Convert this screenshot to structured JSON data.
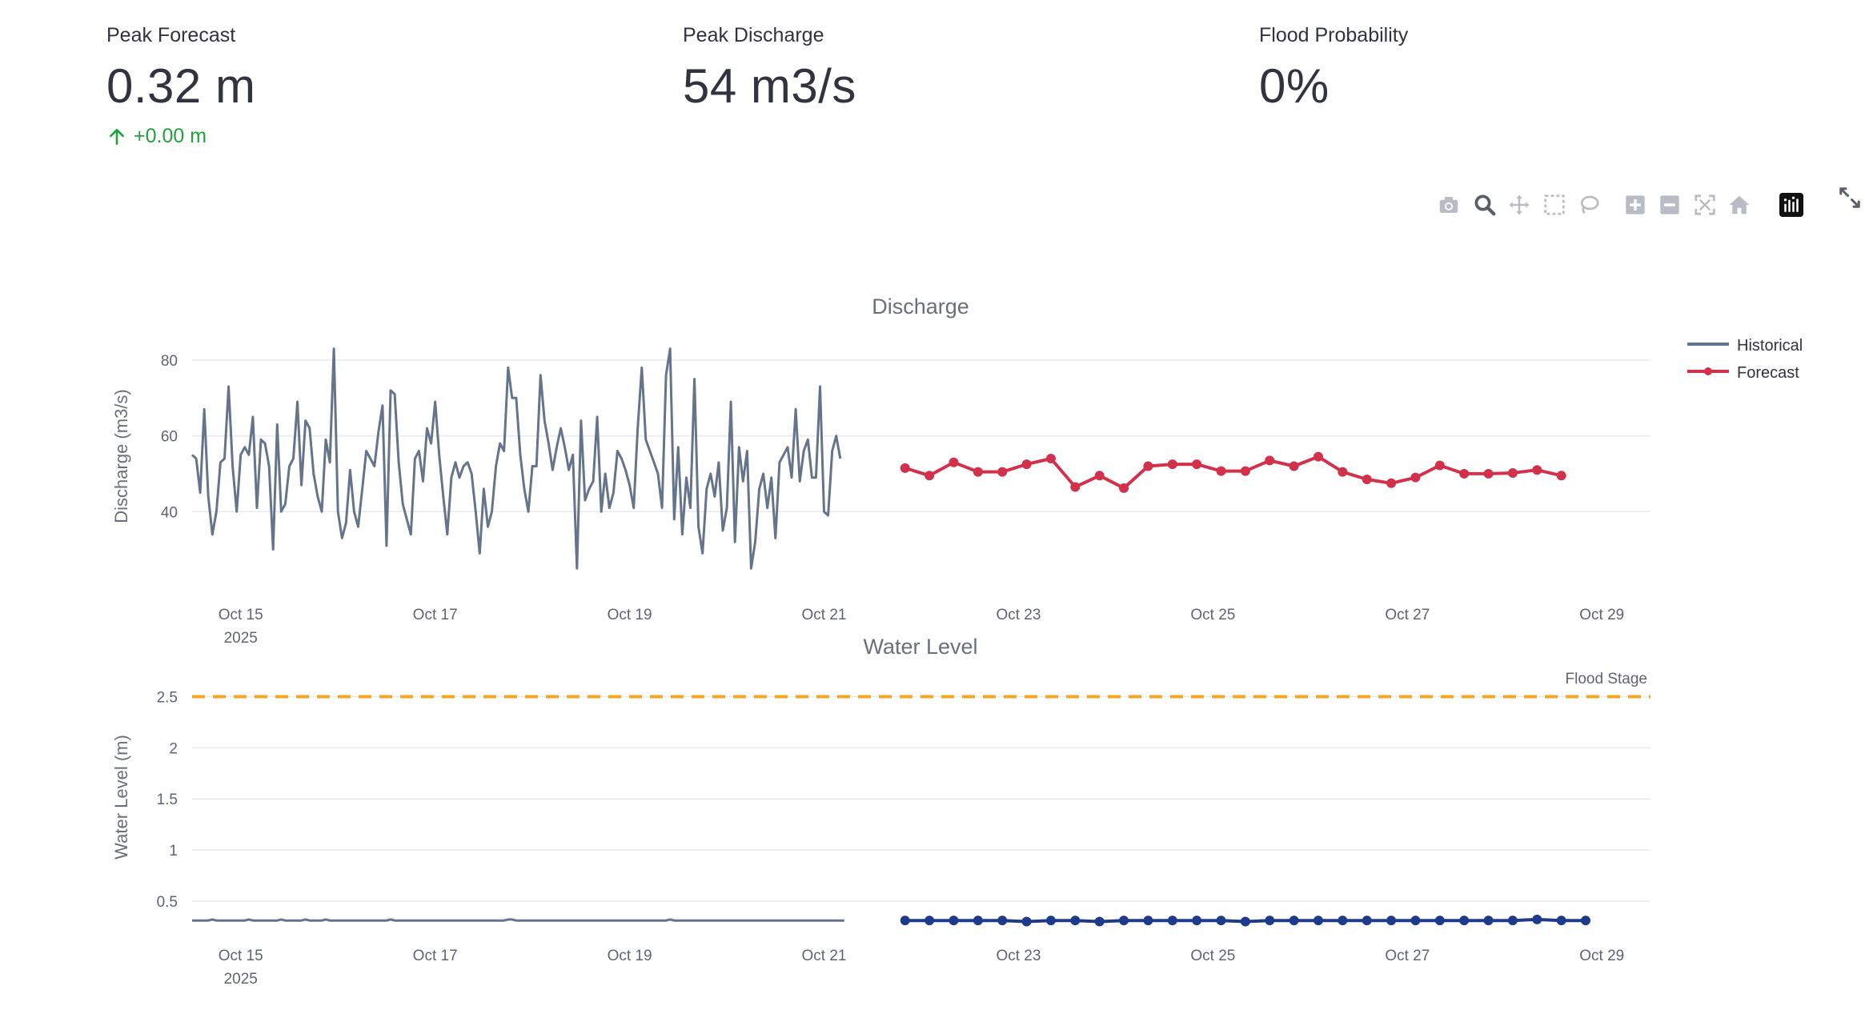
{
  "metrics": [
    {
      "label": "Peak Forecast",
      "value": "0.32 m",
      "delta": "+0.00 m"
    },
    {
      "label": "Peak Discharge",
      "value": "54 m3/s",
      "delta": ""
    },
    {
      "label": "Flood Probability",
      "value": "0%",
      "delta": ""
    }
  ],
  "toolbar": [
    "camera-icon",
    "zoom-icon",
    "pan-icon",
    "box-select-icon",
    "lasso-select-icon",
    "zoom-in-icon",
    "zoom-out-icon",
    "autoscale-icon",
    "reset-axes-icon",
    "plotly-logo-icon",
    "fullscreen-icon"
  ],
  "colors": {
    "historical": "#64748b",
    "discharge_forecast": "#d1314b",
    "level_forecast": "#1e3a8a",
    "flood_stage": "#f5a623",
    "grid": "#e8e9ee",
    "axis_text": "#5f6472",
    "delta_up": "#21a13a"
  },
  "chart_data": [
    {
      "type": "line",
      "title": "Discharge",
      "xlabel": "",
      "ylabel": "Discharge (m3/s)",
      "ylim": [
        20,
        88
      ],
      "yticks": [
        40,
        60,
        80
      ],
      "xlim": [
        "2025-10-14 12:00",
        "2025-10-29 12:00"
      ],
      "xticks": [
        {
          "date": "2025-10-15",
          "label": "Oct 15",
          "sublabel": "2025"
        },
        {
          "date": "2025-10-17",
          "label": "Oct 17",
          "sublabel": ""
        },
        {
          "date": "2025-10-19",
          "label": "Oct 19",
          "sublabel": ""
        },
        {
          "date": "2025-10-21",
          "label": "Oct 21",
          "sublabel": ""
        },
        {
          "date": "2025-10-23",
          "label": "Oct 23",
          "sublabel": ""
        },
        {
          "date": "2025-10-25",
          "label": "Oct 25",
          "sublabel": ""
        },
        {
          "date": "2025-10-27",
          "label": "Oct 27",
          "sublabel": ""
        },
        {
          "date": "2025-10-29",
          "label": "Oct 29",
          "sublabel": ""
        }
      ],
      "grid": true,
      "legend_position": "top-right",
      "series": [
        {
          "name": "Historical",
          "mode": "lines",
          "x_start": "2025-10-14 12:00",
          "x_step_hours": 1.0,
          "values": [
            55,
            54,
            45,
            67,
            44,
            34,
            40,
            53,
            54,
            73,
            52,
            40,
            55,
            57,
            55,
            65,
            41,
            59,
            58,
            52,
            30,
            63,
            40,
            42,
            52,
            54,
            69,
            47,
            64,
            62,
            50,
            44,
            40,
            59,
            53,
            83,
            40,
            33,
            37,
            51,
            40,
            36,
            46,
            56,
            54,
            52,
            61,
            68,
            31,
            72,
            71,
            53,
            42,
            38,
            34,
            54,
            56,
            48,
            62,
            58,
            69,
            55,
            44,
            34,
            49,
            53,
            49,
            52,
            53,
            50,
            40,
            29,
            46,
            36,
            40,
            52,
            58,
            56,
            78,
            70,
            70,
            55,
            46,
            40,
            52,
            52,
            76,
            64,
            58,
            51,
            57,
            62,
            57,
            51,
            55,
            25,
            64,
            43,
            46,
            48,
            65,
            40,
            50,
            41,
            45,
            56,
            54,
            51,
            47,
            41,
            62,
            78,
            59,
            56,
            53,
            50,
            41,
            76,
            83,
            38,
            57,
            34,
            49,
            41,
            75,
            36,
            29,
            46,
            50,
            44,
            53,
            35,
            41,
            69,
            32,
            57,
            48,
            56,
            25,
            32,
            46,
            50,
            41,
            49,
            33,
            53,
            55,
            57,
            49,
            67,
            48,
            56,
            59,
            49,
            49,
            73,
            40,
            39,
            56,
            60,
            54
          ]
        },
        {
          "name": "Forecast",
          "mode": "lines+markers",
          "x_start": "2025-10-21 20:00",
          "x_step_hours": 6.0,
          "values": [
            51.5,
            49.5,
            53,
            50.5,
            50.5,
            52.5,
            54,
            46.5,
            49.5,
            46.2,
            52,
            52.5,
            52.5,
            50.7,
            50.7,
            53.5,
            52,
            54.5,
            50.5,
            48.5,
            47.5,
            49,
            52.2,
            50,
            50,
            50.2,
            51,
            49.5
          ]
        }
      ]
    },
    {
      "type": "line",
      "title": "Water Level",
      "xlabel": "",
      "ylabel": "Water Level (m)",
      "ylim": [
        0.1,
        2.7
      ],
      "yticks": [
        0.5,
        1,
        1.5,
        2,
        2.5
      ],
      "ytick_labels": [
        "0.5",
        "1",
        "1.5",
        "2",
        "2.5"
      ],
      "xlim": [
        "2025-10-14 12:00",
        "2025-10-29 12:00"
      ],
      "grid": true,
      "annotation": {
        "label": "Flood Stage",
        "y": 2.5
      },
      "series": [
        {
          "name": "Historical",
          "mode": "lines",
          "x_start": "2025-10-14 12:00",
          "x_step_hours": 1.0,
          "values": [
            0.31,
            0.31,
            0.31,
            0.31,
            0.31,
            0.32,
            0.31,
            0.31,
            0.31,
            0.31,
            0.31,
            0.31,
            0.31,
            0.31,
            0.32,
            0.31,
            0.31,
            0.31,
            0.31,
            0.31,
            0.31,
            0.31,
            0.32,
            0.31,
            0.31,
            0.31,
            0.31,
            0.31,
            0.32,
            0.31,
            0.31,
            0.31,
            0.31,
            0.32,
            0.31,
            0.31,
            0.31,
            0.31,
            0.31,
            0.31,
            0.31,
            0.31,
            0.31,
            0.31,
            0.31,
            0.31,
            0.31,
            0.31,
            0.31,
            0.32,
            0.31,
            0.31,
            0.31,
            0.31,
            0.31,
            0.31,
            0.31,
            0.31,
            0.31,
            0.31,
            0.31,
            0.31,
            0.31,
            0.31,
            0.31,
            0.31,
            0.31,
            0.31,
            0.31,
            0.31,
            0.31,
            0.31,
            0.31,
            0.31,
            0.31,
            0.31,
            0.31,
            0.31,
            0.32,
            0.32,
            0.31,
            0.31,
            0.31,
            0.31,
            0.31,
            0.31,
            0.31,
            0.31,
            0.31,
            0.31,
            0.31,
            0.31,
            0.31,
            0.31,
            0.31,
            0.31,
            0.31,
            0.31,
            0.31,
            0.31,
            0.31,
            0.31,
            0.31,
            0.31,
            0.31,
            0.31,
            0.31,
            0.31,
            0.31,
            0.31,
            0.31,
            0.31,
            0.31,
            0.31,
            0.31,
            0.31,
            0.31,
            0.31,
            0.32,
            0.31,
            0.31,
            0.31,
            0.31,
            0.31,
            0.31,
            0.31,
            0.31,
            0.31,
            0.31,
            0.31,
            0.31,
            0.31,
            0.31,
            0.31,
            0.31,
            0.31,
            0.31,
            0.31,
            0.31,
            0.31,
            0.31,
            0.31,
            0.31,
            0.31,
            0.31,
            0.31,
            0.31,
            0.31,
            0.31,
            0.31,
            0.31,
            0.31,
            0.31,
            0.31,
            0.31,
            0.31,
            0.31,
            0.31,
            0.31,
            0.31,
            0.31,
            0.31
          ]
        },
        {
          "name": "Forecast",
          "mode": "lines+markers",
          "x_start": "2025-10-21 20:00",
          "x_step_hours": 6.0,
          "values": [
            0.31,
            0.31,
            0.31,
            0.31,
            0.31,
            0.3,
            0.31,
            0.31,
            0.3,
            0.31,
            0.31,
            0.31,
            0.31,
            0.31,
            0.3,
            0.31,
            0.31,
            0.31,
            0.31,
            0.31,
            0.31,
            0.31,
            0.31,
            0.31,
            0.31,
            0.31,
            0.32,
            0.31,
            0.31
          ]
        }
      ]
    }
  ]
}
